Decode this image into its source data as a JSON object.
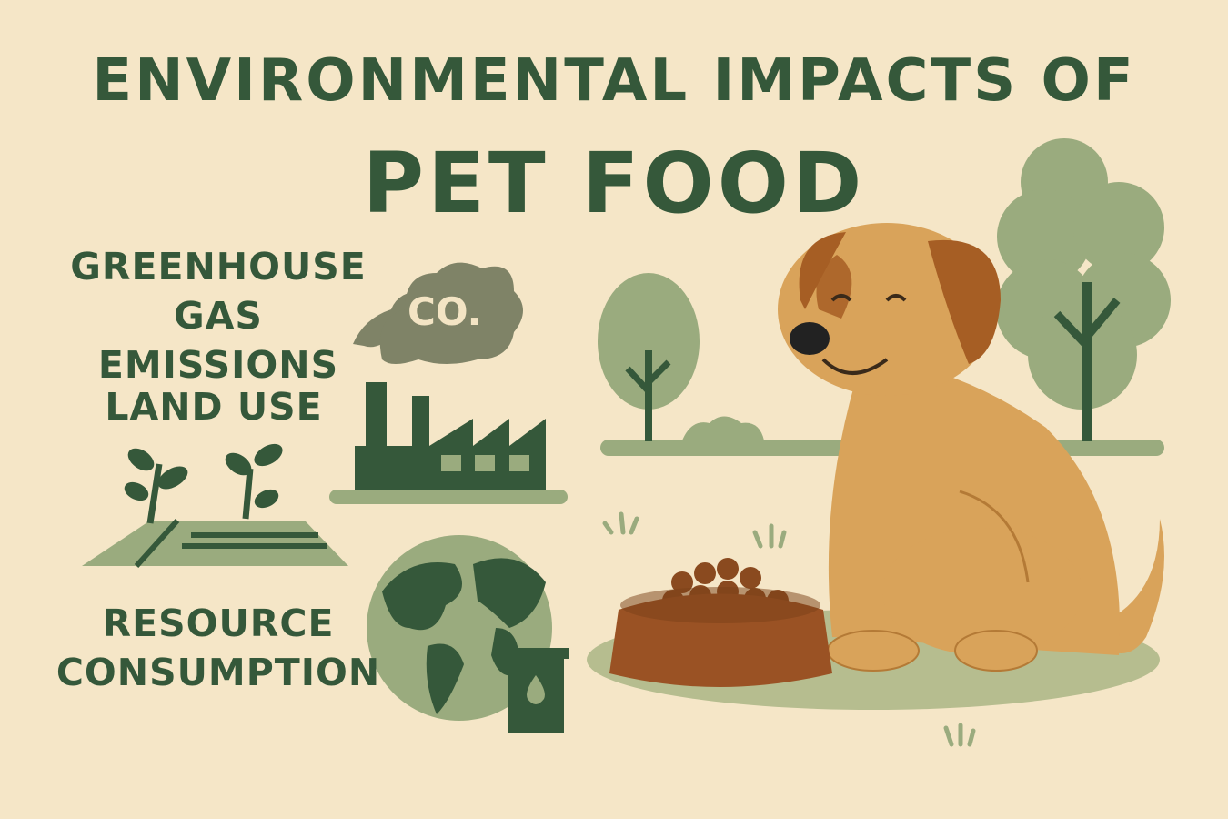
{
  "title": {
    "line1": "ENVIRONMENTAL IMPACTS OF",
    "line2": "PET FOOD"
  },
  "impacts": [
    {
      "label": "GREENHOUSE GAS EMISSIONS",
      "icon": "factory-co2-icon"
    },
    {
      "label": "LAND USE",
      "icon": "farmland-sprouts-icon"
    },
    {
      "label": "RESOURCE CONSUMPTION",
      "icon": "globe-oil-can-icon"
    }
  ],
  "cloud_text": "CO.",
  "colors": {
    "background": "#f5e6c7",
    "dark_green": "#35583a",
    "light_green": "#9aab7e",
    "dog": "#d9a35a",
    "bowl": "#9a5224"
  }
}
